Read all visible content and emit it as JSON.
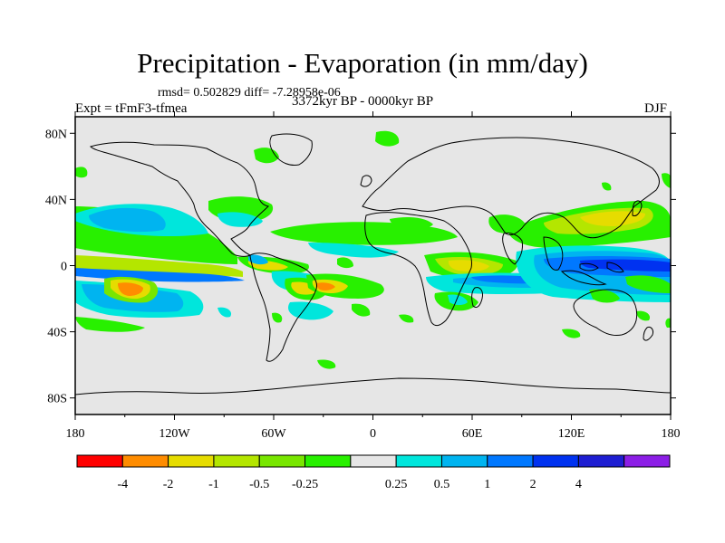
{
  "header": {
    "title": "Precipitation - Evaporation (in mm/day)",
    "stats": "rmsd= 0.502829 diff= -7.28958e-06",
    "experiment": "Expt = tFmF3-tfmea",
    "period": "3372kyr BP - 0000kyr BP",
    "season": "DJF"
  },
  "map": {
    "lat_labels": [
      "80N",
      "40N",
      "0",
      "40S",
      "80S"
    ],
    "lon_labels": [
      "180",
      "120W",
      "60W",
      "0",
      "60E",
      "120E",
      "180"
    ],
    "background_color": "#e6e6e6"
  },
  "colorbar": {
    "colors": [
      "#ff0000",
      "#ff8c00",
      "#e6dc00",
      "#b4e600",
      "#78e600",
      "#28f000",
      "#e6e6e6",
      "#00e6dc",
      "#00b4f0",
      "#0078ff",
      "#0032f0",
      "#1e1ed2",
      "#8c1ee6"
    ],
    "labels": [
      "-4",
      "-2",
      "-1",
      "-0.5",
      "-0.25",
      "0.25",
      "0.5",
      "1",
      "2",
      "4"
    ]
  }
}
